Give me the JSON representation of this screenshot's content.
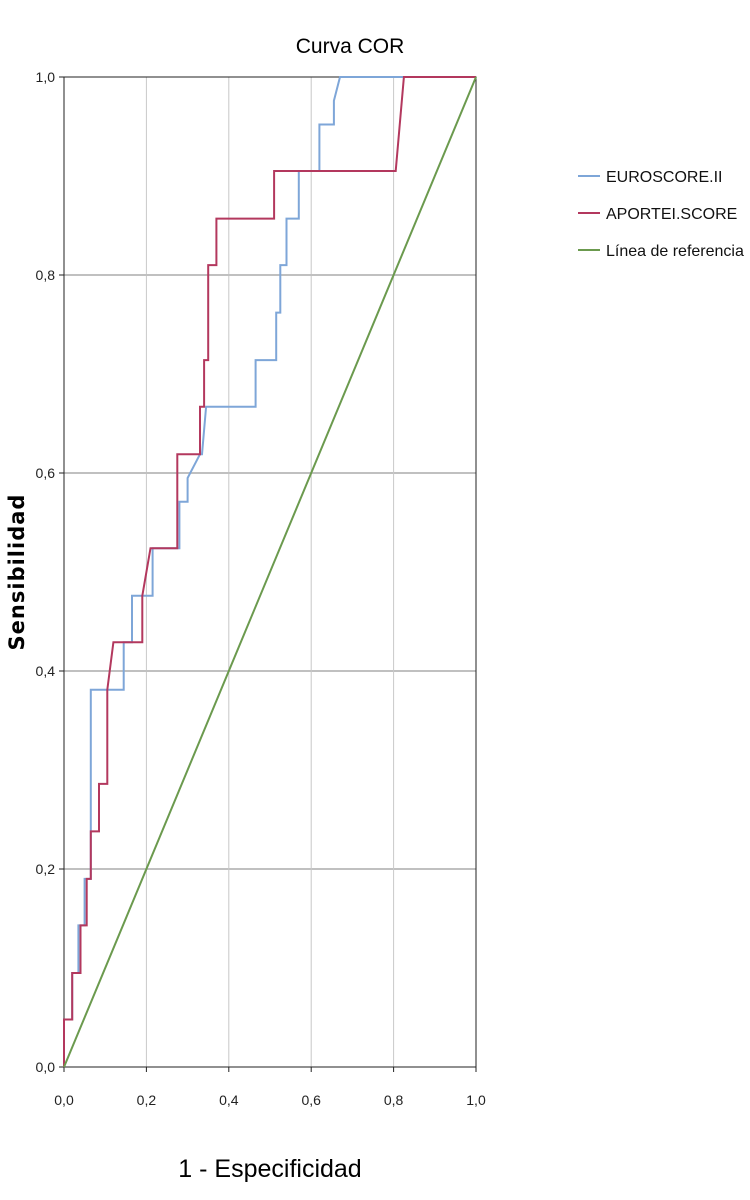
{
  "chart_data": {
    "type": "line",
    "title": "Curva COR",
    "xlabel": "1 - Especificidad",
    "ylabel": "Sensibilidad",
    "xlim": [
      0,
      1
    ],
    "ylim": [
      0,
      1
    ],
    "x_ticks": [
      "0,0",
      "0,2",
      "0,4",
      "0,6",
      "0,8",
      "1,0"
    ],
    "y_ticks": [
      "0,0",
      "0,2",
      "0,4",
      "0,6",
      "0,8",
      "1,0"
    ],
    "grid": true,
    "legend_position": "top-right",
    "series": [
      {
        "name": "EUROSCORE.II",
        "color": "#7ea6d8",
        "points": [
          [
            0,
            0
          ],
          [
            0,
            0.048
          ],
          [
            0.02,
            0.048
          ],
          [
            0.02,
            0.095
          ],
          [
            0.035,
            0.095
          ],
          [
            0.035,
            0.143
          ],
          [
            0.05,
            0.143
          ],
          [
            0.05,
            0.19
          ],
          [
            0.065,
            0.19
          ],
          [
            0.065,
            0.381
          ],
          [
            0.145,
            0.381
          ],
          [
            0.145,
            0.429
          ],
          [
            0.165,
            0.429
          ],
          [
            0.165,
            0.476
          ],
          [
            0.215,
            0.476
          ],
          [
            0.215,
            0.524
          ],
          [
            0.28,
            0.524
          ],
          [
            0.28,
            0.571
          ],
          [
            0.3,
            0.571
          ],
          [
            0.3,
            0.595
          ],
          [
            0.33,
            0.619
          ],
          [
            0.335,
            0.619
          ],
          [
            0.345,
            0.667
          ],
          [
            0.465,
            0.667
          ],
          [
            0.465,
            0.714
          ],
          [
            0.515,
            0.714
          ],
          [
            0.515,
            0.762
          ],
          [
            0.525,
            0.762
          ],
          [
            0.525,
            0.81
          ],
          [
            0.54,
            0.81
          ],
          [
            0.54,
            0.857
          ],
          [
            0.57,
            0.857
          ],
          [
            0.57,
            0.905
          ],
          [
            0.62,
            0.905
          ],
          [
            0.62,
            0.952
          ],
          [
            0.655,
            0.952
          ],
          [
            0.655,
            0.976
          ],
          [
            0.67,
            1.0
          ],
          [
            1.0,
            1.0
          ]
        ]
      },
      {
        "name": "APORTEI.SCORE",
        "color": "#b3385e",
        "points": [
          [
            0,
            0
          ],
          [
            0,
            0.048
          ],
          [
            0.02,
            0.048
          ],
          [
            0.02,
            0.095
          ],
          [
            0.04,
            0.095
          ],
          [
            0.04,
            0.143
          ],
          [
            0.055,
            0.143
          ],
          [
            0.055,
            0.19
          ],
          [
            0.065,
            0.19
          ],
          [
            0.065,
            0.238
          ],
          [
            0.085,
            0.238
          ],
          [
            0.085,
            0.286
          ],
          [
            0.105,
            0.286
          ],
          [
            0.105,
            0.381
          ],
          [
            0.12,
            0.429
          ],
          [
            0.19,
            0.429
          ],
          [
            0.19,
            0.476
          ],
          [
            0.21,
            0.524
          ],
          [
            0.275,
            0.524
          ],
          [
            0.275,
            0.619
          ],
          [
            0.33,
            0.619
          ],
          [
            0.33,
            0.667
          ],
          [
            0.34,
            0.667
          ],
          [
            0.34,
            0.714
          ],
          [
            0.35,
            0.714
          ],
          [
            0.35,
            0.81
          ],
          [
            0.37,
            0.81
          ],
          [
            0.37,
            0.857
          ],
          [
            0.51,
            0.857
          ],
          [
            0.51,
            0.905
          ],
          [
            0.805,
            0.905
          ],
          [
            0.825,
            1.0
          ],
          [
            1.0,
            1.0
          ]
        ]
      },
      {
        "name": "Línea de referencia",
        "color": "#6b9a4e",
        "points": [
          [
            0,
            0
          ],
          [
            1,
            1
          ]
        ]
      }
    ]
  }
}
